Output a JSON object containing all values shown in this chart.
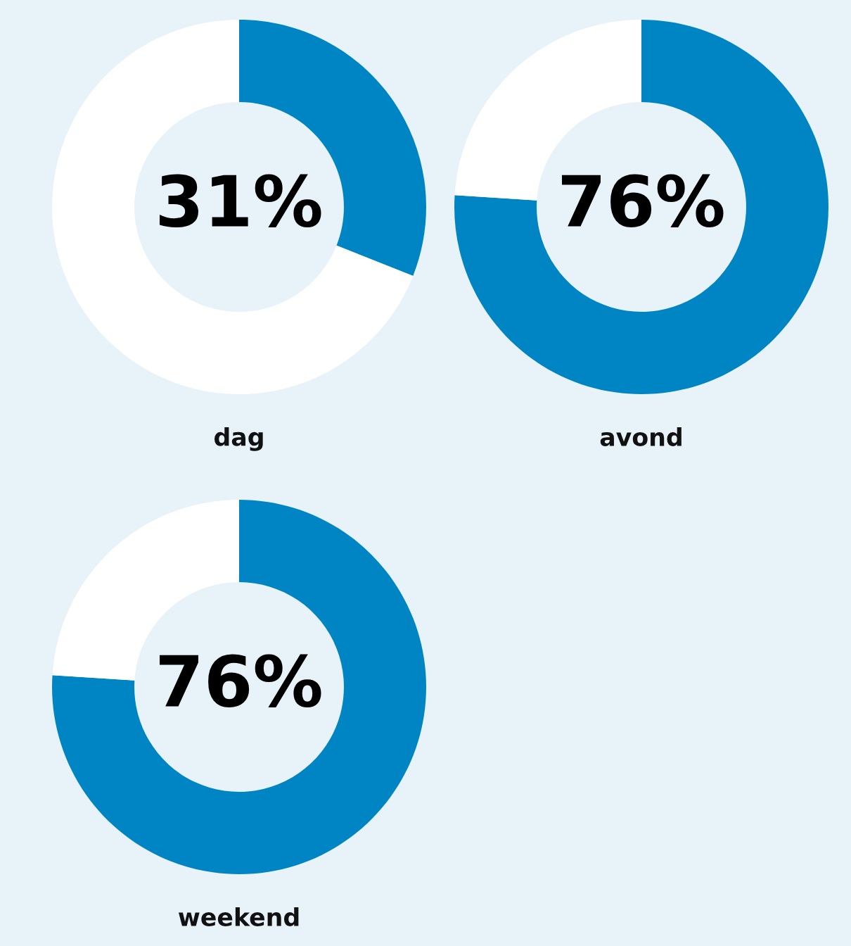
{
  "chart_data": [
    {
      "type": "donut",
      "categories": [
        null,
        null
      ],
      "values": [
        31,
        69
      ],
      "colors": [
        "#0085c4",
        "#ffffff"
      ],
      "value_labels": [
        "31%",
        null
      ],
      "xlabel": "dag"
    },
    {
      "type": "donut",
      "categories": [
        null,
        null
      ],
      "values": [
        76,
        24
      ],
      "colors": [
        "#0085c4",
        "#ffffff"
      ],
      "value_labels": [
        "76%",
        null
      ],
      "xlabel": "avond"
    },
    {
      "type": "donut",
      "categories": [
        null,
        null
      ],
      "values": [
        76,
        24
      ],
      "colors": [
        "#0085c4",
        "#ffffff"
      ],
      "value_labels": [
        "76%",
        null
      ],
      "xlabel": "weekend"
    }
  ]
}
